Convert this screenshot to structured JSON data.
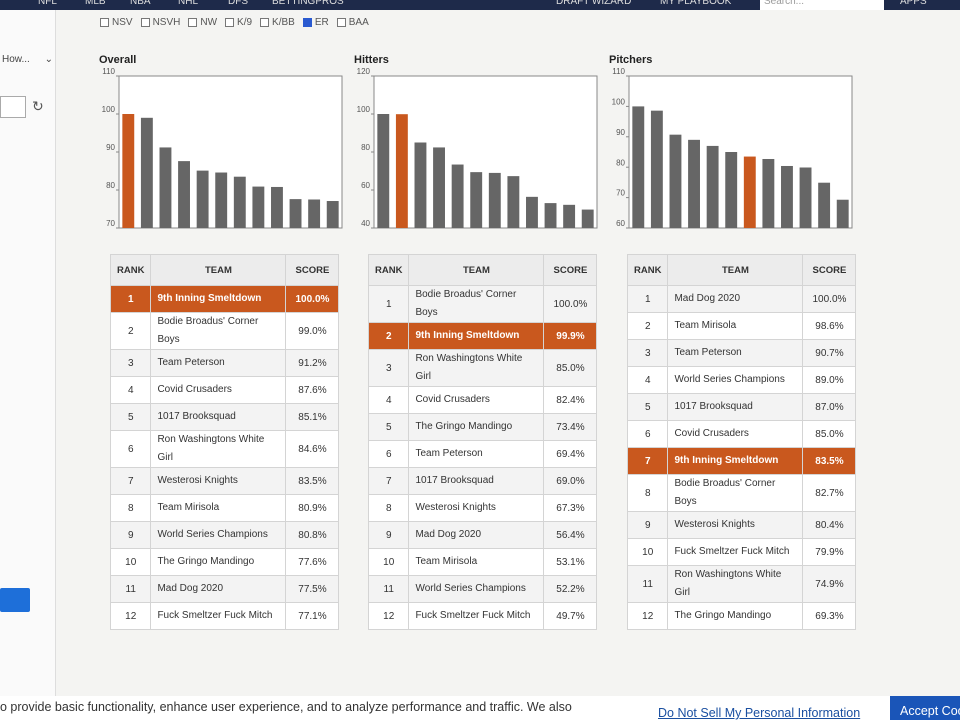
{
  "nav": {
    "left": [
      "NFL",
      "MLB",
      "NBA",
      "NHL",
      "DFS",
      "BETTINGPROS"
    ],
    "right": [
      "DRAFT WIZARD",
      "MY PLAYBOOK"
    ],
    "search": "Search...",
    "apps": "APPS"
  },
  "checkboxes": [
    {
      "label": "NSV",
      "checked": false
    },
    {
      "label": "NSVH",
      "checked": false
    },
    {
      "label": "NW",
      "checked": false
    },
    {
      "label": "K/9",
      "checked": false
    },
    {
      "label": "K/BB",
      "checked": false
    },
    {
      "label": "ER",
      "checked": true
    },
    {
      "label": "BAA",
      "checked": false
    }
  ],
  "sidebar": {
    "dropdown": "How..."
  },
  "chart_data": [
    {
      "type": "bar",
      "title": "Overall",
      "values": [
        100.0,
        99.0,
        91.2,
        87.6,
        85.1,
        84.6,
        83.5,
        80.9,
        80.8,
        77.6,
        77.5,
        77.1
      ],
      "color": "#666666",
      "highlight": 0,
      "highlight_color": "#c9581e",
      "ylim": [
        70,
        110
      ],
      "yticks": [
        70,
        80,
        90,
        100,
        110
      ]
    },
    {
      "type": "bar",
      "title": "Hitters",
      "values": [
        100.0,
        99.9,
        85.0,
        82.4,
        73.4,
        69.4,
        69.0,
        67.3,
        56.4,
        53.1,
        52.2,
        49.7
      ],
      "color": "#666666",
      "highlight": 1,
      "highlight_color": "#c9581e",
      "ylim": [
        40,
        120
      ],
      "yticks": [
        40,
        60,
        80,
        100,
        120
      ]
    },
    {
      "type": "bar",
      "title": "Pitchers",
      "values": [
        100.0,
        98.6,
        90.7,
        89.0,
        87.0,
        85.0,
        83.5,
        82.7,
        80.4,
        79.9,
        74.9,
        69.3
      ],
      "color": "#666666",
      "highlight": 6,
      "highlight_color": "#c9581e",
      "ylim": [
        60,
        110
      ],
      "yticks": [
        60,
        70,
        80,
        90,
        100,
        110
      ]
    }
  ],
  "tables": [
    {
      "columns": [
        "RANK",
        "TEAM",
        "SCORE"
      ],
      "highlight": 0,
      "rows": [
        [
          "1",
          "9th Inning Smeltdown",
          "100.0%"
        ],
        [
          "2",
          "Bodie Broadus' Corner Boys",
          "99.0%"
        ],
        [
          "3",
          "Team Peterson",
          "91.2%"
        ],
        [
          "4",
          "Covid Crusaders",
          "87.6%"
        ],
        [
          "5",
          "1017 Brooksquad",
          "85.1%"
        ],
        [
          "6",
          "Ron Washingtons White Girl",
          "84.6%"
        ],
        [
          "7",
          "Westerosi Knights",
          "83.5%"
        ],
        [
          "8",
          "Team Mirisola",
          "80.9%"
        ],
        [
          "9",
          "World Series Champions",
          "80.8%"
        ],
        [
          "10",
          "The Gringo Mandingo",
          "77.6%"
        ],
        [
          "11",
          "Mad Dog 2020",
          "77.5%"
        ],
        [
          "12",
          "Fuck Smeltzer Fuck Mitch",
          "77.1%"
        ]
      ]
    },
    {
      "columns": [
        "RANK",
        "TEAM",
        "SCORE"
      ],
      "highlight": 1,
      "rows": [
        [
          "1",
          "Bodie Broadus' Corner Boys",
          "100.0%"
        ],
        [
          "2",
          "9th Inning Smeltdown",
          "99.9%"
        ],
        [
          "3",
          "Ron Washingtons White Girl",
          "85.0%"
        ],
        [
          "4",
          "Covid Crusaders",
          "82.4%"
        ],
        [
          "5",
          "The Gringo Mandingo",
          "73.4%"
        ],
        [
          "6",
          "Team Peterson",
          "69.4%"
        ],
        [
          "7",
          "1017 Brooksquad",
          "69.0%"
        ],
        [
          "8",
          "Westerosi Knights",
          "67.3%"
        ],
        [
          "9",
          "Mad Dog 2020",
          "56.4%"
        ],
        [
          "10",
          "Team Mirisola",
          "53.1%"
        ],
        [
          "11",
          "World Series Champions",
          "52.2%"
        ],
        [
          "12",
          "Fuck Smeltzer Fuck Mitch",
          "49.7%"
        ]
      ]
    },
    {
      "columns": [
        "RANK",
        "TEAM",
        "SCORE"
      ],
      "highlight": 6,
      "rows": [
        [
          "1",
          "Mad Dog 2020",
          "100.0%"
        ],
        [
          "2",
          "Team Mirisola",
          "98.6%"
        ],
        [
          "3",
          "Team Peterson",
          "90.7%"
        ],
        [
          "4",
          "World Series Champions",
          "89.0%"
        ],
        [
          "5",
          "1017 Brooksquad",
          "87.0%"
        ],
        [
          "6",
          "Covid Crusaders",
          "85.0%"
        ],
        [
          "7",
          "9th Inning Smeltdown",
          "83.5%"
        ],
        [
          "8",
          "Bodie Broadus' Corner Boys",
          "82.7%"
        ],
        [
          "9",
          "Westerosi Knights",
          "80.4%"
        ],
        [
          "10",
          "Fuck Smeltzer Fuck Mitch",
          "79.9%"
        ],
        [
          "11",
          "Ron Washingtons White Girl",
          "74.9%"
        ],
        [
          "12",
          "The Gringo Mandingo",
          "69.3%"
        ]
      ]
    }
  ],
  "footer": {
    "notice": "o provide basic functionality, enhance user experience, and to analyze performance and traffic. We also",
    "link": "Do Not Sell My Personal Information",
    "button": "Accept Coo"
  }
}
